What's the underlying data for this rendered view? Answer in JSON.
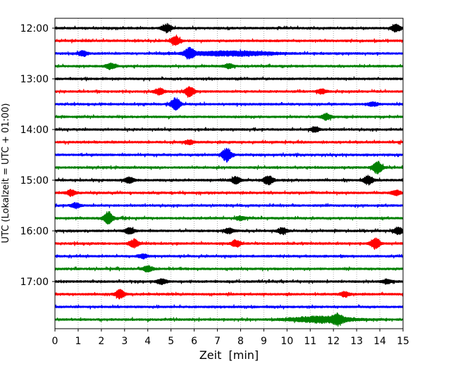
{
  "chart_data": {
    "type": "line",
    "title": "",
    "xlabel": "Zeit  [min]",
    "ylabel": "UTC (Lokalzeit = UTC + 01:00)",
    "xlim": [
      0,
      15
    ],
    "x_ticks": [
      "0",
      "1",
      "2",
      "3",
      "4",
      "5",
      "6",
      "7",
      "8",
      "9",
      "10",
      "11",
      "12",
      "13",
      "14",
      "15"
    ],
    "y_tick_labels": [
      "12:00",
      "13:00",
      "14:00",
      "15:00",
      "16:00",
      "17:00"
    ],
    "grid": "vertical-dotted",
    "line_interval_minutes": 15,
    "color_cycle": [
      "#000000",
      "#ff0000",
      "#0000ff",
      "#008000"
    ],
    "traces": [
      {
        "start": "12:00",
        "color": "#000000",
        "events": [
          {
            "t": 4.8,
            "amp": 0.8
          },
          {
            "t": 14.7,
            "amp": 0.7
          }
        ]
      },
      {
        "start": "12:15",
        "color": "#ff0000",
        "events": [
          {
            "t": 5.2,
            "amp": 0.8
          }
        ]
      },
      {
        "start": "12:30",
        "color": "#0000ff",
        "events": [
          {
            "t": 1.2,
            "amp": 0.5
          },
          {
            "t": 5.8,
            "amp": 1.1
          },
          {
            "t": 7.6,
            "amp": 0.45,
            "dur": 2.4
          }
        ]
      },
      {
        "start": "12:45",
        "color": "#008000",
        "events": [
          {
            "t": 2.4,
            "amp": 0.6
          },
          {
            "t": 7.5,
            "amp": 0.4
          }
        ]
      },
      {
        "start": "13:00",
        "color": "#000000",
        "events": []
      },
      {
        "start": "13:15",
        "color": "#ff0000",
        "events": [
          {
            "t": 4.5,
            "amp": 0.6
          },
          {
            "t": 5.8,
            "amp": 1.0
          },
          {
            "t": 11.5,
            "amp": 0.4
          }
        ]
      },
      {
        "start": "13:30",
        "color": "#0000ff",
        "events": [
          {
            "t": 5.2,
            "amp": 1.3
          },
          {
            "t": 13.7,
            "amp": 0.4
          }
        ]
      },
      {
        "start": "13:45",
        "color": "#008000",
        "events": [
          {
            "t": 11.7,
            "amp": 0.6
          }
        ]
      },
      {
        "start": "14:00",
        "color": "#000000",
        "events": [
          {
            "t": 11.2,
            "amp": 0.5
          }
        ]
      },
      {
        "start": "14:15",
        "color": "#ff0000",
        "events": [
          {
            "t": 5.8,
            "amp": 0.4
          }
        ]
      },
      {
        "start": "14:30",
        "color": "#0000ff",
        "events": [
          {
            "t": 7.4,
            "amp": 1.4
          }
        ]
      },
      {
        "start": "14:45",
        "color": "#008000",
        "events": [
          {
            "t": 13.9,
            "amp": 1.3
          }
        ]
      },
      {
        "start": "15:00",
        "color": "#000000",
        "events": [
          {
            "t": 3.2,
            "amp": 0.6
          },
          {
            "t": 7.8,
            "amp": 0.7
          },
          {
            "t": 9.2,
            "amp": 0.9
          },
          {
            "t": 13.5,
            "amp": 0.9
          }
        ]
      },
      {
        "start": "15:15",
        "color": "#ff0000",
        "events": [
          {
            "t": 0.7,
            "amp": 0.6
          },
          {
            "t": 14.7,
            "amp": 0.5
          }
        ]
      },
      {
        "start": "15:30",
        "color": "#0000ff",
        "events": [
          {
            "t": 0.9,
            "amp": 0.5
          }
        ]
      },
      {
        "start": "15:45",
        "color": "#008000",
        "events": [
          {
            "t": 2.3,
            "amp": 1.3
          },
          {
            "t": 8.0,
            "amp": 0.4
          }
        ]
      },
      {
        "start": "16:00",
        "color": "#000000",
        "events": [
          {
            "t": 3.2,
            "amp": 0.6
          },
          {
            "t": 7.5,
            "amp": 0.5
          },
          {
            "t": 9.8,
            "amp": 0.6
          },
          {
            "t": 14.8,
            "amp": 0.7
          }
        ]
      },
      {
        "start": "16:15",
        "color": "#ff0000",
        "events": [
          {
            "t": 3.4,
            "amp": 0.8
          },
          {
            "t": 7.8,
            "amp": 0.7
          },
          {
            "t": 13.8,
            "amp": 1.1
          }
        ]
      },
      {
        "start": "16:30",
        "color": "#0000ff",
        "events": [
          {
            "t": 3.8,
            "amp": 0.4
          }
        ]
      },
      {
        "start": "16:45",
        "color": "#008000",
        "events": [
          {
            "t": 4.0,
            "amp": 0.6
          }
        ]
      },
      {
        "start": "17:00",
        "color": "#000000",
        "events": [
          {
            "t": 4.6,
            "amp": 0.5
          },
          {
            "t": 14.3,
            "amp": 0.4
          }
        ]
      },
      {
        "start": "17:15",
        "color": "#ff0000",
        "events": [
          {
            "t": 2.8,
            "amp": 0.9
          },
          {
            "t": 12.5,
            "amp": 0.5
          }
        ]
      },
      {
        "start": "17:30",
        "color": "#0000ff",
        "events": []
      },
      {
        "start": "17:45",
        "color": "#008000",
        "events": [
          {
            "t": 11.5,
            "amp": 0.6,
            "dur": 1.8
          },
          {
            "t": 12.2,
            "amp": 0.8
          }
        ]
      }
    ]
  }
}
